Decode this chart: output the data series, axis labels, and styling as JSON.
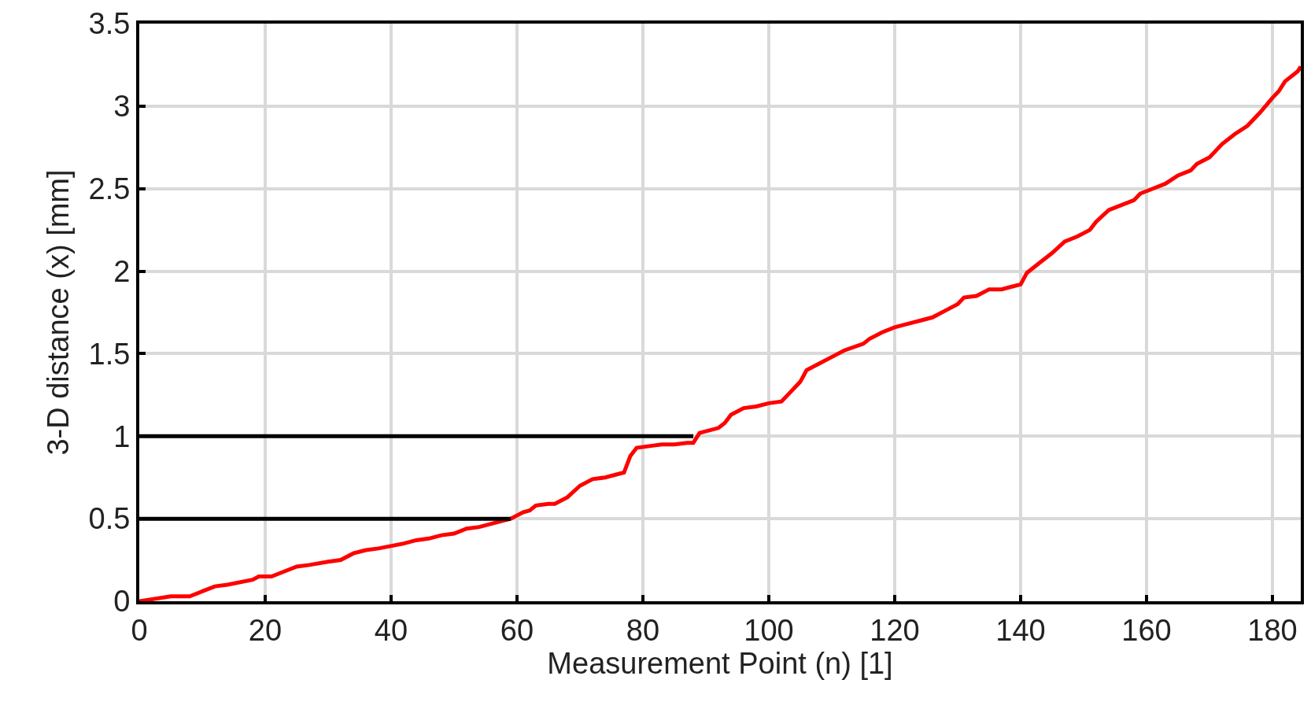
{
  "chart_data": {
    "type": "line",
    "xlabel": "Measurement Point (n) [1]",
    "ylabel": "3-D distance (x) [mm]",
    "xlim": [
      0,
      184.5
    ],
    "xticks": [
      0,
      20,
      40,
      60,
      80,
      100,
      120,
      140,
      160,
      180
    ],
    "ylim": [
      0,
      3.5
    ],
    "yticks": [
      0,
      0.5,
      1,
      1.5,
      2,
      2.5,
      3,
      3.5
    ],
    "grid": true,
    "marker": "none",
    "line_style": "solid",
    "series": [
      {
        "color": "#ff0000",
        "x": [
          0,
          5,
          8,
          10,
          12,
          14,
          18,
          19,
          21,
          23,
          25,
          27,
          30,
          32,
          34,
          36,
          38,
          42,
          44,
          46,
          48,
          50,
          52,
          54,
          56,
          59,
          61,
          62,
          63,
          65,
          66,
          68,
          70,
          72,
          74,
          76,
          77,
          78,
          79,
          81,
          83,
          85,
          87,
          88,
          89,
          92,
          93,
          94,
          96,
          98,
          100,
          102,
          103,
          105,
          106,
          108,
          110,
          112,
          115,
          116,
          118,
          120,
          122,
          124,
          126,
          128,
          130,
          131,
          133,
          135,
          137,
          138,
          140,
          141,
          143,
          145,
          147,
          149,
          151,
          152,
          154,
          156,
          158,
          159,
          161,
          163,
          165,
          167,
          168,
          170,
          172,
          174,
          176,
          178,
          180,
          181,
          182,
          184,
          184.5
        ],
        "values": [
          0,
          0.03,
          0.03,
          0.06,
          0.09,
          0.1,
          0.13,
          0.15,
          0.15,
          0.18,
          0.21,
          0.22,
          0.24,
          0.25,
          0.29,
          0.31,
          0.32,
          0.35,
          0.37,
          0.38,
          0.4,
          0.41,
          0.44,
          0.45,
          0.47,
          0.5,
          0.54,
          0.55,
          0.58,
          0.59,
          0.59,
          0.63,
          0.7,
          0.74,
          0.75,
          0.77,
          0.78,
          0.88,
          0.93,
          0.94,
          0.95,
          0.95,
          0.96,
          0.96,
          1.02,
          1.05,
          1.08,
          1.13,
          1.17,
          1.18,
          1.2,
          1.21,
          1.25,
          1.33,
          1.4,
          1.44,
          1.48,
          1.52,
          1.56,
          1.59,
          1.63,
          1.66,
          1.68,
          1.7,
          1.72,
          1.76,
          1.8,
          1.84,
          1.85,
          1.89,
          1.89,
          1.9,
          1.92,
          1.99,
          2.05,
          2.11,
          2.18,
          2.21,
          2.25,
          2.3,
          2.37,
          2.4,
          2.43,
          2.47,
          2.5,
          2.53,
          2.58,
          2.61,
          2.65,
          2.69,
          2.77,
          2.83,
          2.88,
          2.96,
          3.05,
          3.09,
          3.15,
          3.21,
          3.24
        ]
      },
      {
        "color": "#000000",
        "x": [
          0,
          88
        ],
        "values": [
          1,
          1
        ]
      },
      {
        "color": "#000000",
        "x": [
          0,
          59
        ],
        "values": [
          0.5,
          0.5
        ]
      }
    ]
  }
}
